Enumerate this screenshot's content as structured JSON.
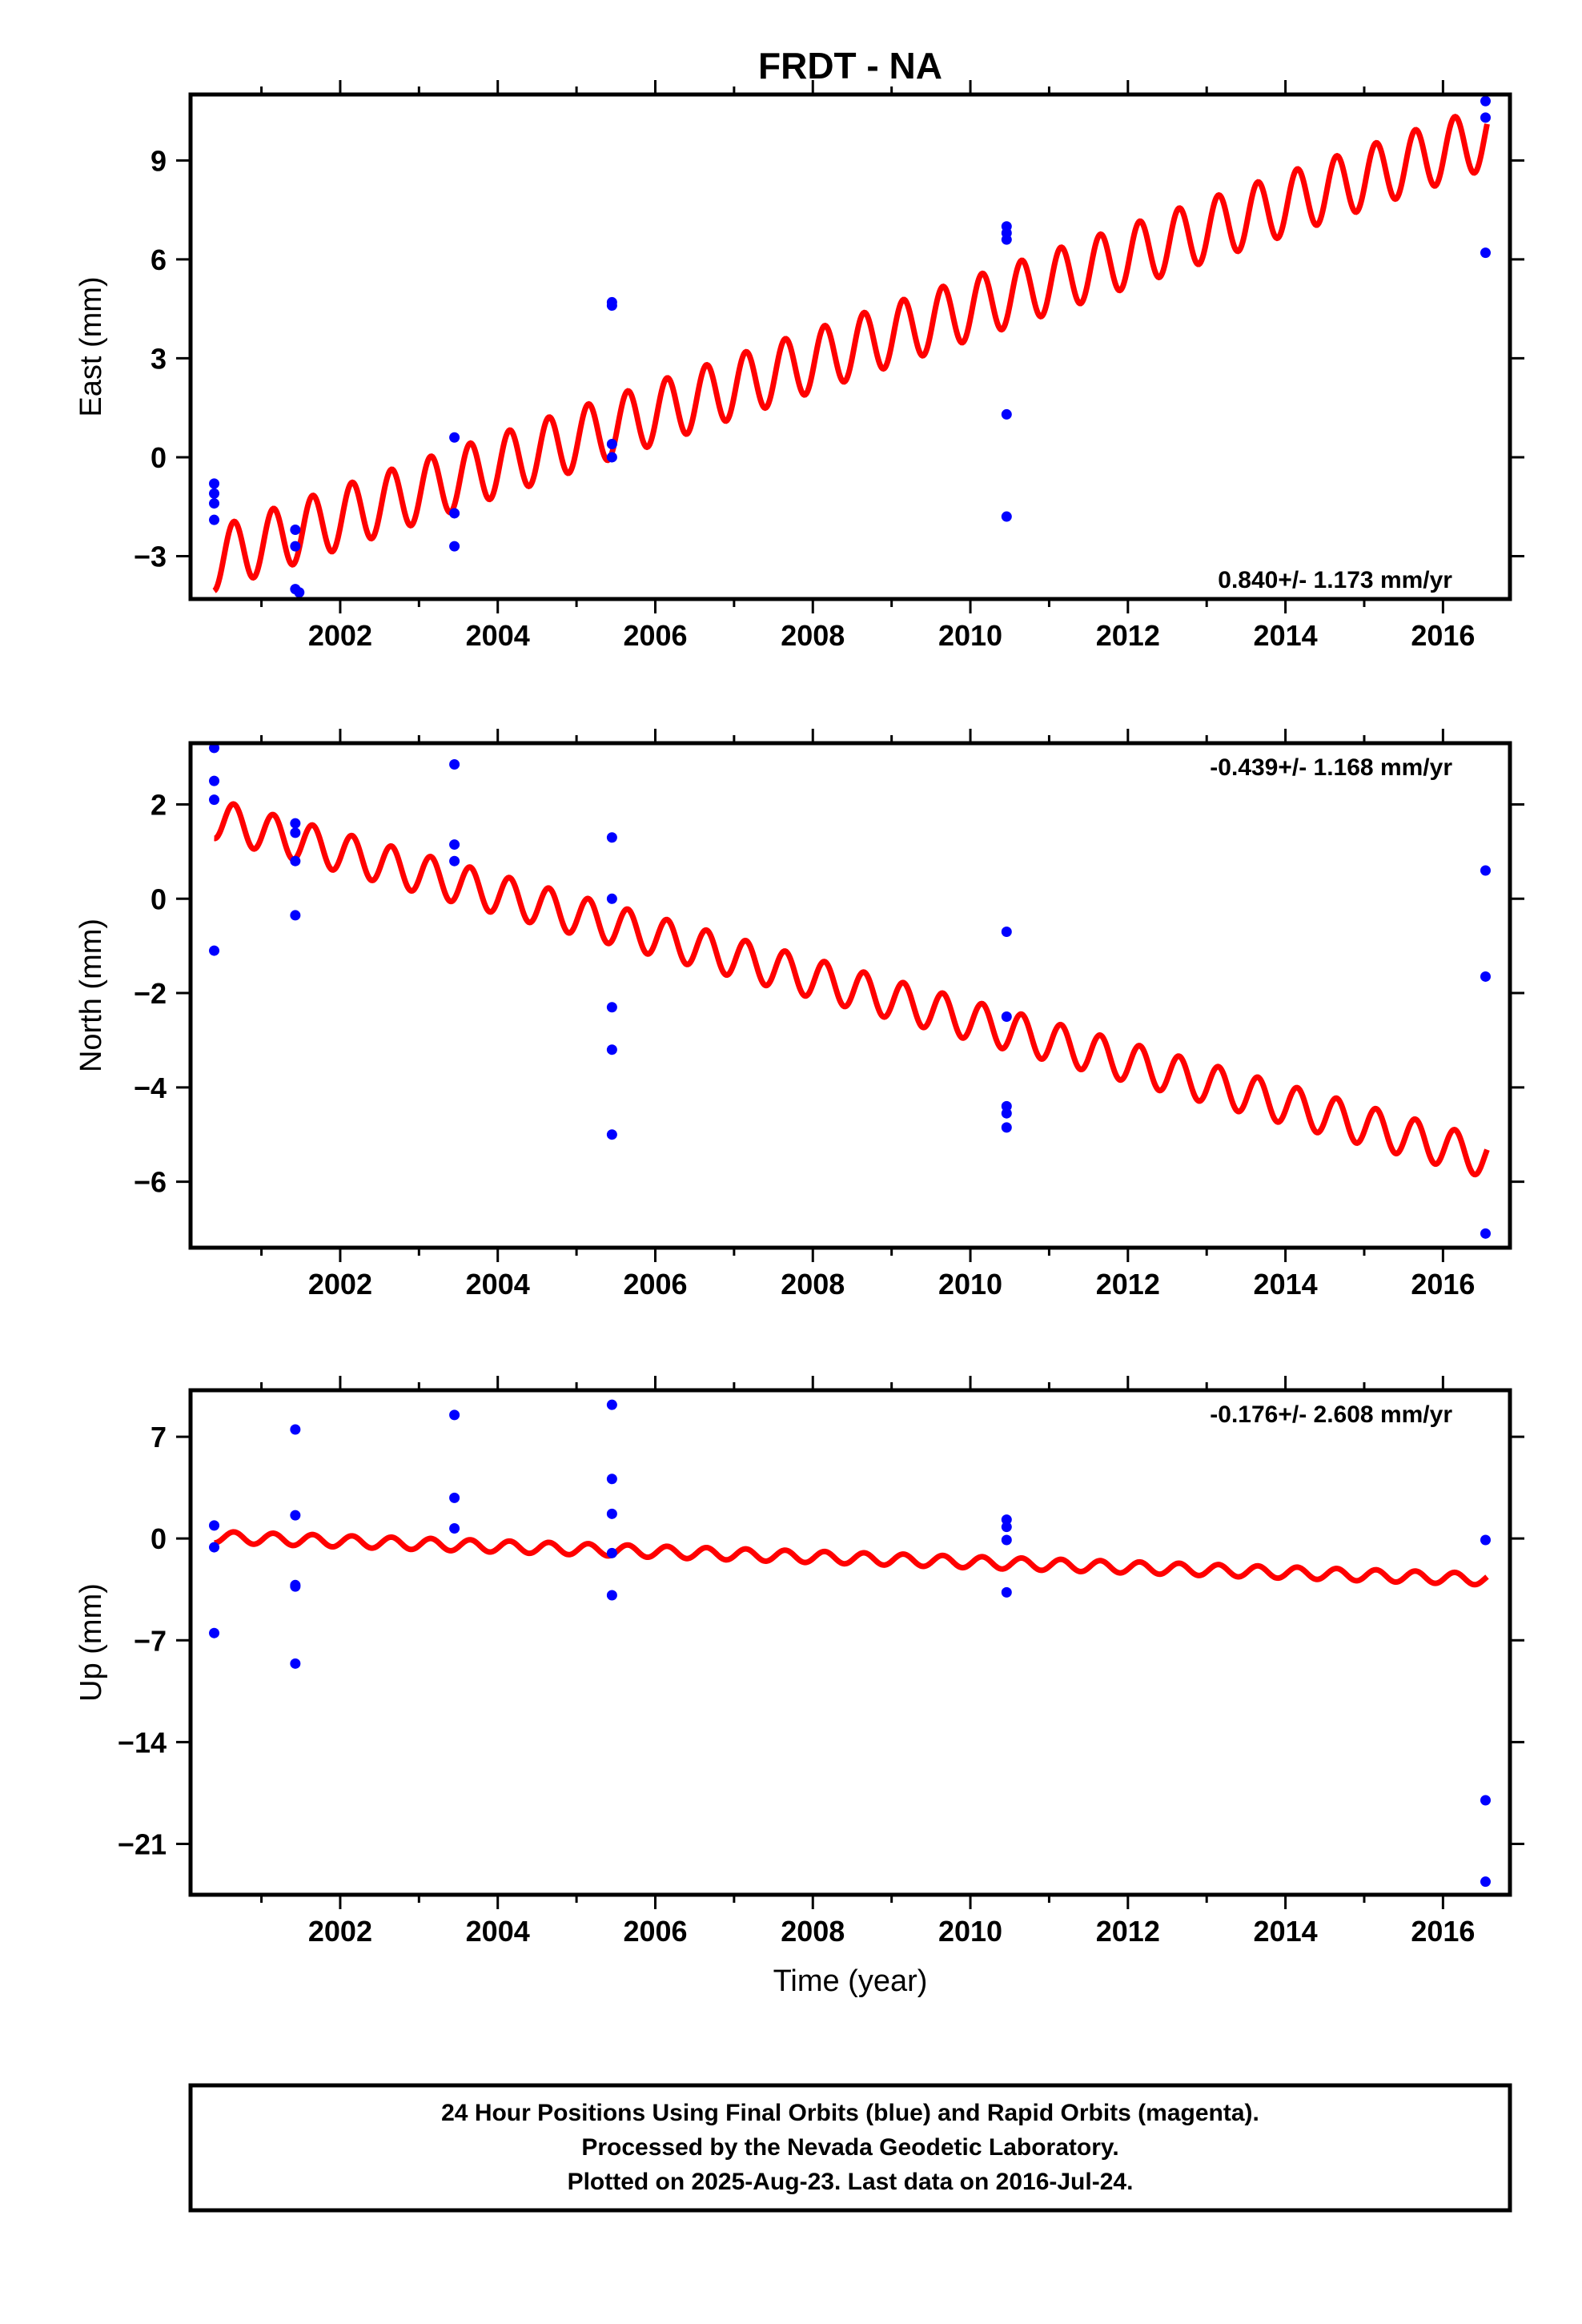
{
  "title": "FRDT - NA",
  "xlabel": "Time (year)",
  "caption_lines": [
    "24 Hour Positions Using Final Orbits (blue) and Rapid Orbits (magenta).",
    "Processed by the Nevada Geodetic Laboratory.",
    "Plotted on 2025-Aug-23. Last data on 2016-Jul-24."
  ],
  "colors": {
    "data_points": "#0000ff",
    "model_line": "#ff0000",
    "frame": "#000000"
  },
  "chart_data": [
    {
      "type": "scatter",
      "ylabel": "East (mm)",
      "rate_text": "0.840+/- 1.173 mm/yr",
      "rate_position": "bottom-right",
      "xlim": [
        2000.1,
        2016.85
      ],
      "ylim": [
        -4.3,
        11.0
      ],
      "x_ticks": [
        2002,
        2004,
        2006,
        2008,
        2010,
        2012,
        2014,
        2016
      ],
      "y_ticks": [
        -3,
        0,
        3,
        6,
        9
      ],
      "y_tick_labels": [
        "−3",
        "0",
        "3",
        "6",
        "9"
      ],
      "points": [
        [
          2000.4,
          -0.8
        ],
        [
          2000.4,
          -1.1
        ],
        [
          2000.4,
          -1.4
        ],
        [
          2000.4,
          -1.9
        ],
        [
          2001.43,
          -2.2
        ],
        [
          2001.43,
          -2.7
        ],
        [
          2001.43,
          -4.0
        ],
        [
          2001.48,
          -4.1
        ],
        [
          2003.45,
          0.6
        ],
        [
          2003.45,
          -1.7
        ],
        [
          2003.45,
          -2.7
        ],
        [
          2005.45,
          4.7
        ],
        [
          2005.45,
          4.6
        ],
        [
          2005.45,
          0.4
        ],
        [
          2005.45,
          0.0
        ],
        [
          2010.46,
          7.0
        ],
        [
          2010.46,
          6.8
        ],
        [
          2010.46,
          6.6
        ],
        [
          2010.46,
          1.3
        ],
        [
          2010.46,
          -1.8
        ],
        [
          2016.54,
          10.8
        ],
        [
          2016.54,
          10.3
        ],
        [
          2016.54,
          6.2
        ]
      ],
      "model": {
        "start": 2000.4,
        "end": 2016.56,
        "y_start": -3.1,
        "y_end": 9.7,
        "amplitude": 0.95,
        "period": 0.5
      }
    },
    {
      "type": "scatter",
      "ylabel": "North (mm)",
      "rate_text": "-0.439+/- 1.168 mm/yr",
      "rate_position": "top-right",
      "xlim": [
        2000.1,
        2016.85
      ],
      "ylim": [
        -7.4,
        3.3
      ],
      "x_ticks": [
        2002,
        2004,
        2006,
        2008,
        2010,
        2012,
        2014,
        2016
      ],
      "y_ticks": [
        -6,
        -4,
        -2,
        0,
        2
      ],
      "y_tick_labels": [
        "−6",
        "−4",
        "−2",
        "0",
        "2"
      ],
      "points": [
        [
          2000.4,
          3.2
        ],
        [
          2000.4,
          2.5
        ],
        [
          2000.4,
          2.1
        ],
        [
          2000.4,
          -1.1
        ],
        [
          2001.43,
          1.6
        ],
        [
          2001.43,
          1.4
        ],
        [
          2001.43,
          0.8
        ],
        [
          2001.43,
          -0.35
        ],
        [
          2003.45,
          2.85
        ],
        [
          2003.45,
          1.15
        ],
        [
          2003.45,
          0.8
        ],
        [
          2005.45,
          1.3
        ],
        [
          2005.45,
          0.0
        ],
        [
          2005.45,
          -2.3
        ],
        [
          2005.45,
          -3.2
        ],
        [
          2005.45,
          -5.0
        ],
        [
          2010.46,
          -0.7
        ],
        [
          2010.46,
          -2.5
        ],
        [
          2010.46,
          -4.4
        ],
        [
          2010.46,
          -4.55
        ],
        [
          2010.46,
          -4.85
        ],
        [
          2016.54,
          0.6
        ],
        [
          2016.54,
          -1.65
        ],
        [
          2016.54,
          -7.1
        ]
      ],
      "model": {
        "start": 2000.4,
        "end": 2016.56,
        "y_start": 1.7,
        "y_end": -5.5,
        "amplitude": 0.42,
        "period": 0.5
      }
    },
    {
      "type": "scatter",
      "ylabel": "Up (mm)",
      "rate_text": "-0.176+/- 2.608 mm/yr",
      "rate_position": "top-right",
      "xlim": [
        2000.1,
        2016.85
      ],
      "ylim": [
        -24.5,
        10.2
      ],
      "x_ticks": [
        2002,
        2004,
        2006,
        2008,
        2010,
        2012,
        2014,
        2016
      ],
      "y_ticks": [
        -21,
        -14,
        -7,
        0,
        7
      ],
      "y_tick_labels": [
        "−21",
        "−14",
        "−7",
        "0",
        "7"
      ],
      "points": [
        [
          2000.4,
          0.9
        ],
        [
          2000.4,
          -0.6
        ],
        [
          2000.4,
          -6.5
        ],
        [
          2001.43,
          7.5
        ],
        [
          2001.43,
          1.6
        ],
        [
          2001.43,
          -3.2
        ],
        [
          2001.43,
          -3.3
        ],
        [
          2001.43,
          -8.6
        ],
        [
          2003.45,
          8.5
        ],
        [
          2003.45,
          2.8
        ],
        [
          2003.45,
          0.7
        ],
        [
          2005.45,
          9.2
        ],
        [
          2005.45,
          4.1
        ],
        [
          2005.45,
          1.7
        ],
        [
          2005.45,
          -1.0
        ],
        [
          2005.45,
          -3.9
        ],
        [
          2010.46,
          1.3
        ],
        [
          2010.46,
          0.8
        ],
        [
          2010.46,
          -0.1
        ],
        [
          2010.46,
          -3.7
        ],
        [
          2016.54,
          -0.1
        ],
        [
          2016.54,
          -18.0
        ],
        [
          2016.54,
          -23.6
        ]
      ],
      "model": {
        "start": 2000.4,
        "end": 2016.56,
        "y_start": 0.1,
        "y_end": -2.8,
        "amplitude": 0.4,
        "period": 0.5
      }
    }
  ]
}
